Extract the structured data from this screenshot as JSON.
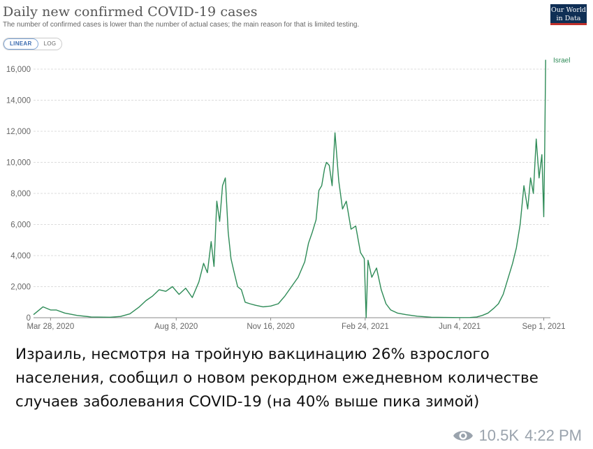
{
  "chart": {
    "title": "Daily new confirmed COVID-19 cases",
    "subtitle": "The number of confirmed cases is lower than the number of actual cases; the main reason for that is limited testing.",
    "logo_line1": "Our World",
    "logo_line2": "in Data",
    "scale_options": [
      "LINEAR",
      "LOG"
    ],
    "active_scale": "LINEAR"
  },
  "chart_data": {
    "type": "line",
    "title": "Daily new confirmed COVID-19 cases",
    "subtitle": "The number of confirmed cases is lower than the number of actual cases; the main reason for that is limited testing.",
    "xlabel": "",
    "ylabel": "",
    "ylim": [
      0,
      16000
    ],
    "xlim": [
      "2020-03-10",
      "2021-09-08"
    ],
    "y_ticks": [
      0,
      2000,
      4000,
      6000,
      8000,
      10000,
      12000,
      14000,
      16000
    ],
    "y_tick_labels": [
      "0",
      "2,000",
      "4,000",
      "6,000",
      "8,000",
      "10,000",
      "12,000",
      "14,000",
      "16,000"
    ],
    "x_ticks": [
      "2020-03-28",
      "2020-08-08",
      "2020-11-16",
      "2021-02-24",
      "2021-06-04",
      "2021-09-01"
    ],
    "x_tick_labels": [
      "Mar 28, 2020",
      "Aug 8, 2020",
      "Nov 16, 2020",
      "Feb 24, 2021",
      "Jun 4, 2021",
      "Sep 1, 2021"
    ],
    "grid": "horizontal",
    "legend": "end-of-line label",
    "color": "#2e8b57",
    "series": [
      {
        "name": "Israel",
        "x": [
          "2020-03-10",
          "2020-03-20",
          "2020-03-28",
          "2020-04-03",
          "2020-04-12",
          "2020-04-25",
          "2020-05-10",
          "2020-05-30",
          "2020-06-10",
          "2020-06-20",
          "2020-06-30",
          "2020-07-07",
          "2020-07-14",
          "2020-07-21",
          "2020-07-28",
          "2020-08-04",
          "2020-08-11",
          "2020-08-18",
          "2020-08-25",
          "2020-09-01",
          "2020-09-06",
          "2020-09-10",
          "2020-09-14",
          "2020-09-17",
          "2020-09-20",
          "2020-09-23",
          "2020-09-26",
          "2020-09-29",
          "2020-10-02",
          "2020-10-05",
          "2020-10-08",
          "2020-10-12",
          "2020-10-16",
          "2020-10-20",
          "2020-10-25",
          "2020-10-31",
          "2020-11-08",
          "2020-11-16",
          "2020-11-24",
          "2020-12-01",
          "2020-12-08",
          "2020-12-15",
          "2020-12-22",
          "2020-12-26",
          "2020-12-30",
          "2021-01-03",
          "2021-01-06",
          "2021-01-09",
          "2021-01-12",
          "2021-01-14",
          "2021-01-17",
          "2021-01-20",
          "2021-01-23",
          "2021-01-27",
          "2021-01-31",
          "2021-02-04",
          "2021-02-09",
          "2021-02-14",
          "2021-02-19",
          "2021-02-23",
          "2021-02-25",
          "2021-02-27",
          "2021-03-03",
          "2021-03-08",
          "2021-03-13",
          "2021-03-18",
          "2021-03-23",
          "2021-03-30",
          "2021-04-08",
          "2021-04-20",
          "2021-05-05",
          "2021-05-20",
          "2021-06-04",
          "2021-06-15",
          "2021-06-22",
          "2021-06-28",
          "2021-07-04",
          "2021-07-10",
          "2021-07-15",
          "2021-07-20",
          "2021-07-25",
          "2021-07-30",
          "2021-08-03",
          "2021-08-07",
          "2021-08-11",
          "2021-08-15",
          "2021-08-18",
          "2021-08-21",
          "2021-08-24",
          "2021-08-27",
          "2021-08-30",
          "2021-09-01",
          "2021-09-02",
          "2021-09-03"
        ],
        "y": [
          200,
          700,
          500,
          500,
          300,
          150,
          50,
          30,
          80,
          250,
          700,
          1100,
          1400,
          1800,
          1700,
          2000,
          1500,
          1900,
          1300,
          2300,
          3500,
          2900,
          4900,
          3300,
          7500,
          6200,
          8500,
          9000,
          5500,
          3800,
          3000,
          2000,
          1800,
          1000,
          900,
          800,
          700,
          750,
          900,
          1400,
          2000,
          2600,
          3600,
          4800,
          5500,
          6300,
          8200,
          8500,
          9600,
          10000,
          9800,
          8500,
          11900,
          8800,
          7000,
          7500,
          5700,
          5900,
          4200,
          3800,
          0,
          3700,
          2600,
          3200,
          1800,
          900,
          500,
          300,
          200,
          100,
          30,
          20,
          10,
          15,
          50,
          150,
          300,
          600,
          900,
          1500,
          2500,
          3500,
          4500,
          6000,
          8500,
          7000,
          9000,
          8000,
          11500,
          9000,
          10500,
          6500,
          11000,
          16600
        ]
      }
    ],
    "end_label": "Israel"
  },
  "caption": {
    "text": "Израиль, несмотря на тройную вакцинацию 26% взрослого населения, сообщил о новом рекордном ежедневном количестве случаев заболевания COVID-19 (на 40% выше пика зимой)"
  },
  "meta": {
    "views": "10.5K",
    "time": "4:22 PM",
    "views_icon": "eye-icon"
  }
}
